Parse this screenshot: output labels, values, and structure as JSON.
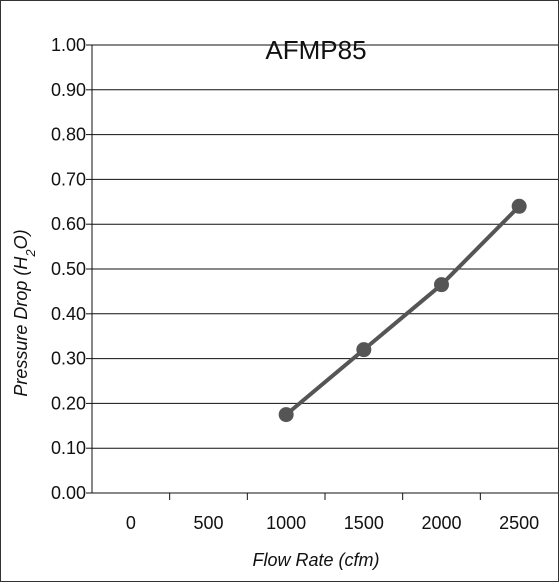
{
  "chart_data": {
    "type": "line",
    "title": "AFMP85",
    "xlabel": "Flow Rate (cfm)",
    "ylabel_parts": {
      "main": "Pressure Drop (H",
      "subscript": "2",
      "suffix": "O)"
    },
    "x_ticks": [
      "0",
      "500",
      "1000",
      "1500",
      "2000",
      "2500"
    ],
    "y_ticks": [
      "0.00",
      "0.10",
      "0.20",
      "0.30",
      "0.40",
      "0.50",
      "0.60",
      "0.70",
      "0.80",
      "0.90",
      "1.00"
    ],
    "xlim": [
      -500,
      2500
    ],
    "ylim": [
      0,
      1
    ],
    "grid": "horizontal",
    "series": [
      {
        "x": [
          750,
          1250,
          1750,
          2250
        ],
        "y": [
          0.175,
          0.32,
          0.465,
          0.64
        ],
        "color": "#555555",
        "marker": "circle"
      }
    ]
  }
}
